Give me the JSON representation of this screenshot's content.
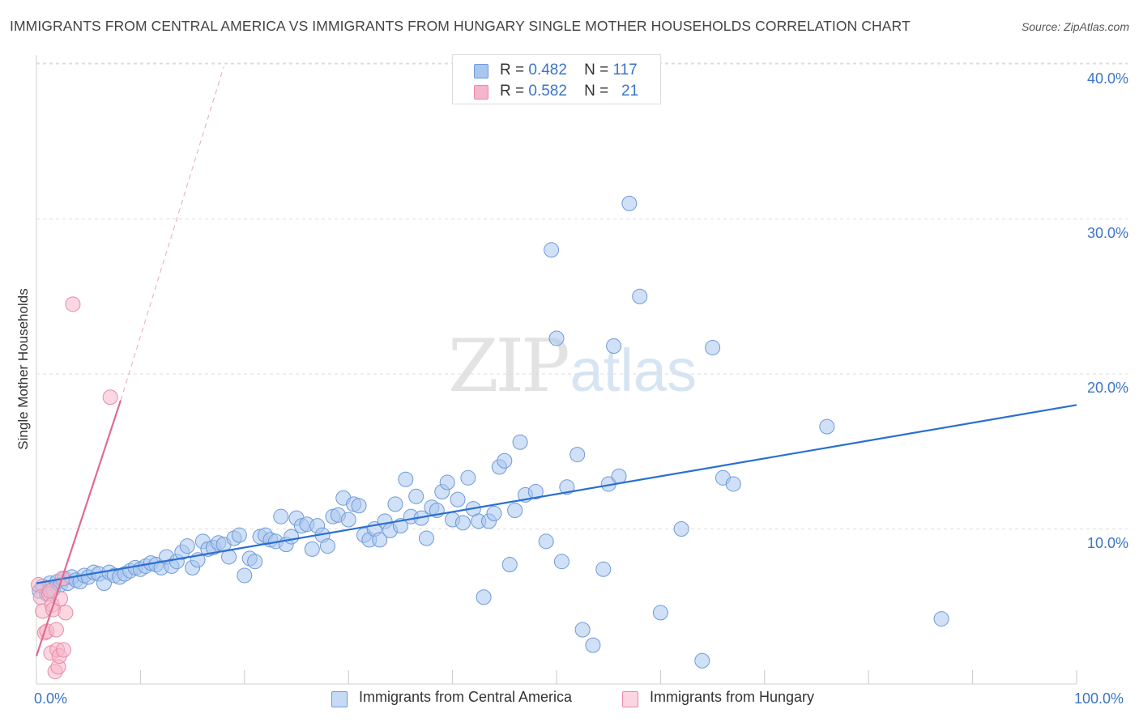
{
  "title": "IMMIGRANTS FROM CENTRAL AMERICA VS IMMIGRANTS FROM HUNGARY SINGLE MOTHER HOUSEHOLDS CORRELATION CHART",
  "source": "Source: ZipAtlas.com",
  "watermark": {
    "zip": "ZIP",
    "atlas": "atlas"
  },
  "legend": {
    "r_label": "R =",
    "n_label": "N =",
    "rows": [
      {
        "r": "0.482",
        "n": "117"
      },
      {
        "r": "0.582",
        "n": "21"
      }
    ]
  },
  "colors": {
    "blue_fill": "#a9c6ef",
    "blue_stroke": "#6e9ad8",
    "blue_line": "#2a6fd0",
    "pink_fill": "#f6b6c9",
    "pink_stroke": "#e88aa7",
    "pink_line": "#e06a93",
    "grid": "#dddddd",
    "axis_text": "#3b74c8"
  },
  "chart_data": {
    "type": "scatter",
    "title": "IMMIGRANTS FROM CENTRAL AMERICA VS IMMIGRANTS FROM HUNGARY SINGLE MOTHER HOUSEHOLDS CORRELATION CHART",
    "xlabel": "",
    "ylabel": "Single Mother Households",
    "xlim": [
      0,
      100
    ],
    "ylim": [
      0,
      42
    ],
    "x_tick_labels": [
      "0.0%",
      "100.0%"
    ],
    "y_ticks": [
      10,
      20,
      30,
      40
    ],
    "y_tick_labels": [
      "10.0%",
      "20.0%",
      "30.0%",
      "40.0%"
    ],
    "grid": true,
    "legend_position": "top-center",
    "series": [
      {
        "name": "Immigrants from Central America",
        "r": 0.482,
        "n": 117,
        "trend": {
          "x": [
            0,
            100
          ],
          "y": [
            6.5,
            18.0
          ]
        },
        "points": [
          [
            0.3,
            6.0
          ],
          [
            0.6,
            6.3
          ],
          [
            1.0,
            5.8
          ],
          [
            1.3,
            6.5
          ],
          [
            1.6,
            6.1
          ],
          [
            2.0,
            6.6
          ],
          [
            2.3,
            6.4
          ],
          [
            2.7,
            6.8
          ],
          [
            3.0,
            6.5
          ],
          [
            3.4,
            6.9
          ],
          [
            3.8,
            6.7
          ],
          [
            4.2,
            6.6
          ],
          [
            4.6,
            7.0
          ],
          [
            5.0,
            6.9
          ],
          [
            5.5,
            7.2
          ],
          [
            6.0,
            7.1
          ],
          [
            6.5,
            6.5
          ],
          [
            7.0,
            7.2
          ],
          [
            7.5,
            7.0
          ],
          [
            8.0,
            6.9
          ],
          [
            8.5,
            7.1
          ],
          [
            9.0,
            7.3
          ],
          [
            9.5,
            7.5
          ],
          [
            10.0,
            7.4
          ],
          [
            10.5,
            7.6
          ],
          [
            11.0,
            7.8
          ],
          [
            11.5,
            7.7
          ],
          [
            12.0,
            7.5
          ],
          [
            12.5,
            8.2
          ],
          [
            13.0,
            7.6
          ],
          [
            13.5,
            7.9
          ],
          [
            14.0,
            8.5
          ],
          [
            14.5,
            8.9
          ],
          [
            15.0,
            7.5
          ],
          [
            15.5,
            8.0
          ],
          [
            16.0,
            9.2
          ],
          [
            16.5,
            8.7
          ],
          [
            17.0,
            8.8
          ],
          [
            17.5,
            9.1
          ],
          [
            18.0,
            9.0
          ],
          [
            18.5,
            8.2
          ],
          [
            19.0,
            9.4
          ],
          [
            19.5,
            9.6
          ],
          [
            20.0,
            7.0
          ],
          [
            20.5,
            8.1
          ],
          [
            21.0,
            7.9
          ],
          [
            21.5,
            9.5
          ],
          [
            22.0,
            9.6
          ],
          [
            22.5,
            9.3
          ],
          [
            23.0,
            9.2
          ],
          [
            23.5,
            10.8
          ],
          [
            24.0,
            9.0
          ],
          [
            24.5,
            9.5
          ],
          [
            25.0,
            10.7
          ],
          [
            25.5,
            10.2
          ],
          [
            26.0,
            10.3
          ],
          [
            26.5,
            8.7
          ],
          [
            27.0,
            10.2
          ],
          [
            27.5,
            9.6
          ],
          [
            28.0,
            8.9
          ],
          [
            28.5,
            10.8
          ],
          [
            29.0,
            10.9
          ],
          [
            29.5,
            12.0
          ],
          [
            30.0,
            10.6
          ],
          [
            30.5,
            11.6
          ],
          [
            31.0,
            11.5
          ],
          [
            31.5,
            9.6
          ],
          [
            32.0,
            9.3
          ],
          [
            32.5,
            10.0
          ],
          [
            33.0,
            9.3
          ],
          [
            33.5,
            10.5
          ],
          [
            34.0,
            9.9
          ],
          [
            34.5,
            11.6
          ],
          [
            35.0,
            10.2
          ],
          [
            35.5,
            13.2
          ],
          [
            36.0,
            10.8
          ],
          [
            36.5,
            12.1
          ],
          [
            37.0,
            10.7
          ],
          [
            37.5,
            9.4
          ],
          [
            38.0,
            11.4
          ],
          [
            38.5,
            11.2
          ],
          [
            39.0,
            12.4
          ],
          [
            39.5,
            13.0
          ],
          [
            40.0,
            10.6
          ],
          [
            40.5,
            11.9
          ],
          [
            41.0,
            10.4
          ],
          [
            41.5,
            13.3
          ],
          [
            42.0,
            11.3
          ],
          [
            42.5,
            10.5
          ],
          [
            43.0,
            5.6
          ],
          [
            43.5,
            10.5
          ],
          [
            44.0,
            11.0
          ],
          [
            44.5,
            14.0
          ],
          [
            45.0,
            14.4
          ],
          [
            45.5,
            7.7
          ],
          [
            46.0,
            11.2
          ],
          [
            46.5,
            15.6
          ],
          [
            47.0,
            12.2
          ],
          [
            48.0,
            12.4
          ],
          [
            49.0,
            9.2
          ],
          [
            49.5,
            28.0
          ],
          [
            50.0,
            22.3
          ],
          [
            50.5,
            7.9
          ],
          [
            51.0,
            12.7
          ],
          [
            52.0,
            14.8
          ],
          [
            52.5,
            3.5
          ],
          [
            53.5,
            2.5
          ],
          [
            54.5,
            7.4
          ],
          [
            55.0,
            12.9
          ],
          [
            55.5,
            21.8
          ],
          [
            56.0,
            13.4
          ],
          [
            57.0,
            31.0
          ],
          [
            58.0,
            25.0
          ],
          [
            60.0,
            4.6
          ],
          [
            62.0,
            10.0
          ],
          [
            64.0,
            1.5
          ],
          [
            65.0,
            21.7
          ],
          [
            66.0,
            13.3
          ],
          [
            67.0,
            12.9
          ],
          [
            76.0,
            16.6
          ],
          [
            87.0,
            4.2
          ]
        ]
      },
      {
        "name": "Immigrants from Hungary",
        "r": 0.582,
        "n": 21,
        "trend": {
          "x": [
            0,
            8.1
          ],
          "y": [
            1.8,
            18.3
          ]
        },
        "trend_dashed": {
          "x": [
            8.1,
            18.0
          ],
          "y": [
            18.3,
            39.8
          ]
        },
        "points": [
          [
            0.2,
            6.4
          ],
          [
            0.4,
            5.6
          ],
          [
            0.6,
            4.7
          ],
          [
            0.8,
            3.3
          ],
          [
            1.0,
            3.4
          ],
          [
            1.2,
            5.8
          ],
          [
            1.3,
            6.0
          ],
          [
            1.4,
            2.0
          ],
          [
            1.5,
            5.1
          ],
          [
            1.6,
            4.8
          ],
          [
            1.8,
            0.8
          ],
          [
            1.9,
            3.5
          ],
          [
            2.0,
            2.2
          ],
          [
            2.1,
            1.1
          ],
          [
            2.2,
            1.8
          ],
          [
            2.3,
            5.5
          ],
          [
            2.5,
            6.8
          ],
          [
            2.6,
            2.2
          ],
          [
            2.8,
            4.6
          ],
          [
            3.5,
            24.5
          ],
          [
            7.1,
            18.5
          ]
        ]
      }
    ]
  }
}
